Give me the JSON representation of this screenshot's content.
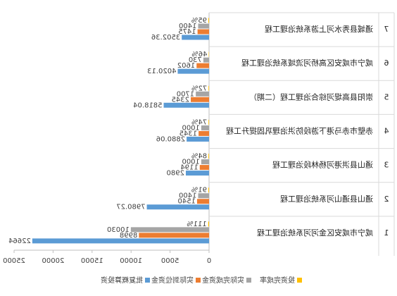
{
  "chart_data": {
    "type": "bar",
    "orientation": "horizontal",
    "mirrored": true,
    "category_numbers": [
      "1",
      "2",
      "3",
      "4",
      "5",
      "6",
      "7"
    ],
    "categories": [
      "咸宁市咸安区金河河系统治理工程",
      "通山县通山河系统治理工程",
      "通山县洪港河杨林段治理工程",
      "赤壁市赤马港下游段防洪治理巩固提升工程",
      "崇阳县高堤河综合治理工程（二期）",
      "咸宁市咸安区高桥河流域系统治理工程",
      "通城县秀水河上游系统治理工程"
    ],
    "series": [
      {
        "name": "批复概算投资",
        "color": "#5b9bd5",
        "values": [
          22664,
          7980.27,
          2980,
          2880.06,
          5818.04,
          4020.13,
          3502.36
        ]
      },
      {
        "name": "实际到位资金",
        "color": "#ed7d31",
        "values": [
          8998,
          1540,
          1194,
          1345,
          2345,
          1602,
          1475
        ]
      },
      {
        "name": "实际完成资金",
        "color": "#a5a5a5",
        "values": [
          10030,
          1400,
          1000,
          1000,
          1700,
          730,
          1400
        ]
      },
      {
        "name": "投资完成率",
        "color": "#ffc000",
        "values": [
          111,
          91,
          84,
          74,
          72,
          46,
          95
        ],
        "value_labels": [
          "111%",
          "91%",
          "84%",
          "74%",
          "72%",
          "46%",
          "95%"
        ]
      }
    ],
    "xlim": [
      0,
      25000
    ],
    "xticks": [
      0,
      5000,
      10000,
      15000,
      20000,
      25000
    ]
  }
}
